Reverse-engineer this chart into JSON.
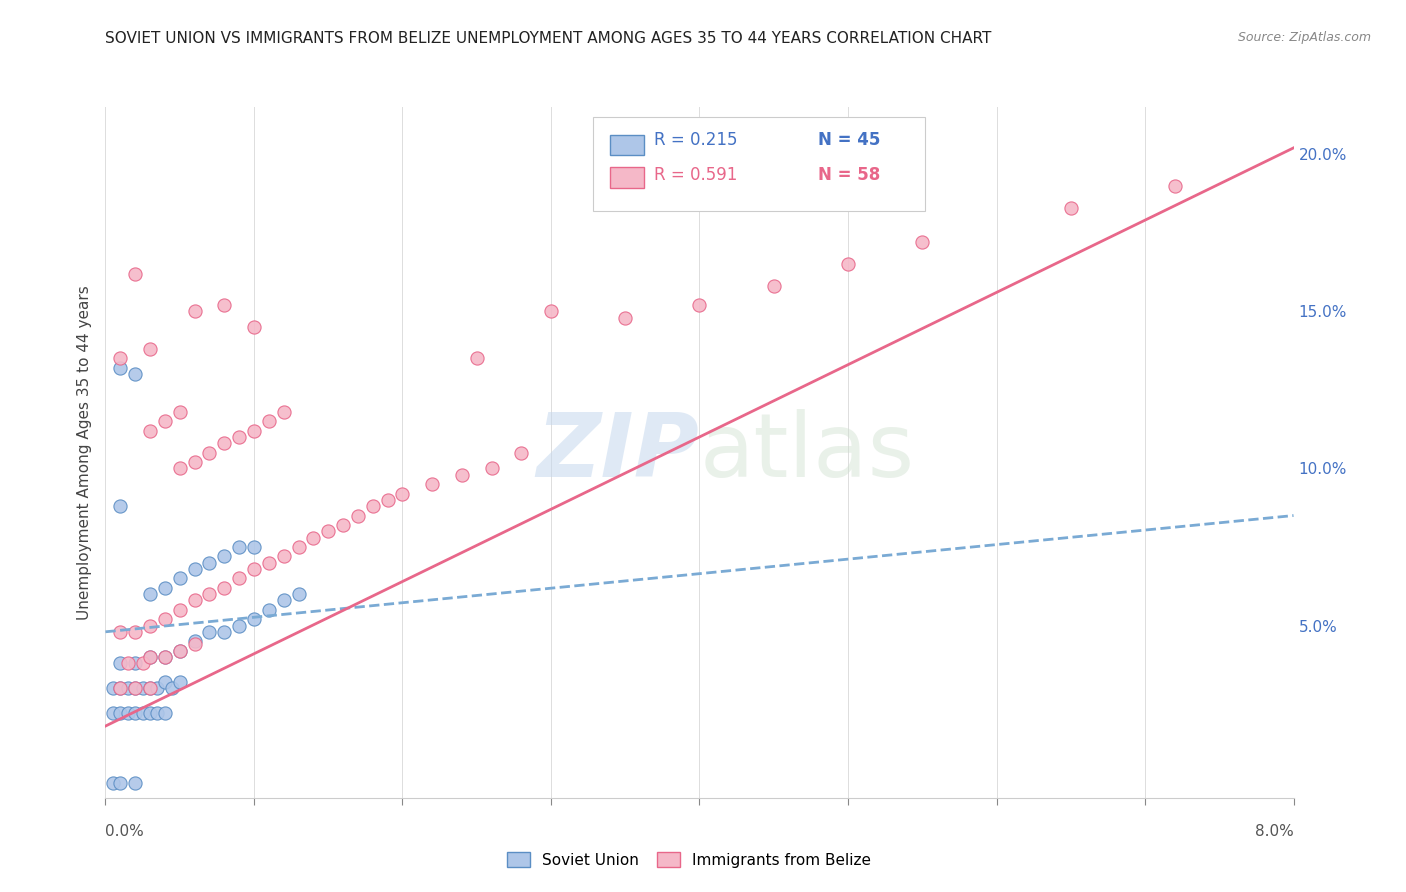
{
  "title": "SOVIET UNION VS IMMIGRANTS FROM BELIZE UNEMPLOYMENT AMONG AGES 35 TO 44 YEARS CORRELATION CHART",
  "source": "Source: ZipAtlas.com",
  "ylabel": "Unemployment Among Ages 35 to 44 years",
  "right_yticks_vals": [
    0.05,
    0.1,
    0.15,
    0.2
  ],
  "right_ytick_labels": [
    "5.0%",
    "10.0%",
    "15.0%",
    "20.0%"
  ],
  "watermark_zip": "ZIP",
  "watermark_atlas": "atlas",
  "legend_r1": "R = 0.215",
  "legend_n1": "N = 45",
  "legend_r2": "R = 0.591",
  "legend_n2": "N = 58",
  "soviet_color": "#aec6e8",
  "belize_color": "#f5b8c8",
  "soviet_edge_color": "#5b8ec4",
  "belize_edge_color": "#e8678a",
  "soviet_line_color": "#7aaad4",
  "belize_line_color": "#e8678a",
  "xmin": 0.0,
  "xmax": 0.08,
  "ymin": -0.005,
  "ymax": 0.215,
  "xtick_positions": [
    0.0,
    0.01,
    0.02,
    0.03,
    0.04,
    0.05,
    0.06,
    0.07,
    0.08
  ],
  "soviet_trendline": [
    [
      0.0,
      0.048
    ],
    [
      0.08,
      0.085
    ]
  ],
  "belize_trendline": [
    [
      0.0,
      0.018
    ],
    [
      0.08,
      0.202
    ]
  ],
  "soviet_scatter": [
    [
      0.0005,
      0.0
    ],
    [
      0.001,
      0.0
    ],
    [
      0.002,
      0.0
    ],
    [
      0.0005,
      0.022
    ],
    [
      0.001,
      0.022
    ],
    [
      0.0015,
      0.022
    ],
    [
      0.002,
      0.022
    ],
    [
      0.0025,
      0.022
    ],
    [
      0.003,
      0.022
    ],
    [
      0.0035,
      0.022
    ],
    [
      0.004,
      0.022
    ],
    [
      0.0005,
      0.03
    ],
    [
      0.001,
      0.03
    ],
    [
      0.0015,
      0.03
    ],
    [
      0.002,
      0.03
    ],
    [
      0.0025,
      0.03
    ],
    [
      0.003,
      0.03
    ],
    [
      0.0035,
      0.03
    ],
    [
      0.004,
      0.032
    ],
    [
      0.0045,
      0.03
    ],
    [
      0.005,
      0.032
    ],
    [
      0.001,
      0.038
    ],
    [
      0.002,
      0.038
    ],
    [
      0.003,
      0.04
    ],
    [
      0.004,
      0.04
    ],
    [
      0.005,
      0.042
    ],
    [
      0.006,
      0.045
    ],
    [
      0.007,
      0.048
    ],
    [
      0.008,
      0.048
    ],
    [
      0.009,
      0.05
    ],
    [
      0.01,
      0.052
    ],
    [
      0.011,
      0.055
    ],
    [
      0.012,
      0.058
    ],
    [
      0.013,
      0.06
    ],
    [
      0.003,
      0.06
    ],
    [
      0.004,
      0.062
    ],
    [
      0.005,
      0.065
    ],
    [
      0.006,
      0.068
    ],
    [
      0.007,
      0.07
    ],
    [
      0.008,
      0.072
    ],
    [
      0.009,
      0.075
    ],
    [
      0.01,
      0.075
    ],
    [
      0.001,
      0.088
    ],
    [
      0.001,
      0.132
    ],
    [
      0.002,
      0.13
    ]
  ],
  "belize_scatter": [
    [
      0.001,
      0.03
    ],
    [
      0.002,
      0.03
    ],
    [
      0.003,
      0.03
    ],
    [
      0.0015,
      0.038
    ],
    [
      0.0025,
      0.038
    ],
    [
      0.003,
      0.04
    ],
    [
      0.004,
      0.04
    ],
    [
      0.005,
      0.042
    ],
    [
      0.006,
      0.044
    ],
    [
      0.001,
      0.048
    ],
    [
      0.002,
      0.048
    ],
    [
      0.003,
      0.05
    ],
    [
      0.004,
      0.052
    ],
    [
      0.005,
      0.055
    ],
    [
      0.006,
      0.058
    ],
    [
      0.007,
      0.06
    ],
    [
      0.008,
      0.062
    ],
    [
      0.009,
      0.065
    ],
    [
      0.01,
      0.068
    ],
    [
      0.011,
      0.07
    ],
    [
      0.012,
      0.072
    ],
    [
      0.013,
      0.075
    ],
    [
      0.014,
      0.078
    ],
    [
      0.015,
      0.08
    ],
    [
      0.016,
      0.082
    ],
    [
      0.017,
      0.085
    ],
    [
      0.018,
      0.088
    ],
    [
      0.019,
      0.09
    ],
    [
      0.02,
      0.092
    ],
    [
      0.022,
      0.095
    ],
    [
      0.024,
      0.098
    ],
    [
      0.026,
      0.1
    ],
    [
      0.028,
      0.105
    ],
    [
      0.003,
      0.112
    ],
    [
      0.004,
      0.115
    ],
    [
      0.005,
      0.118
    ],
    [
      0.005,
      0.1
    ],
    [
      0.006,
      0.102
    ],
    [
      0.007,
      0.105
    ],
    [
      0.008,
      0.108
    ],
    [
      0.009,
      0.11
    ],
    [
      0.01,
      0.112
    ],
    [
      0.011,
      0.115
    ],
    [
      0.012,
      0.118
    ],
    [
      0.001,
      0.135
    ],
    [
      0.003,
      0.138
    ],
    [
      0.006,
      0.15
    ],
    [
      0.008,
      0.152
    ],
    [
      0.01,
      0.145
    ],
    [
      0.002,
      0.162
    ],
    [
      0.025,
      0.135
    ],
    [
      0.03,
      0.15
    ],
    [
      0.035,
      0.148
    ],
    [
      0.04,
      0.152
    ],
    [
      0.045,
      0.158
    ],
    [
      0.05,
      0.165
    ],
    [
      0.055,
      0.172
    ],
    [
      0.065,
      0.183
    ],
    [
      0.072,
      0.19
    ]
  ]
}
